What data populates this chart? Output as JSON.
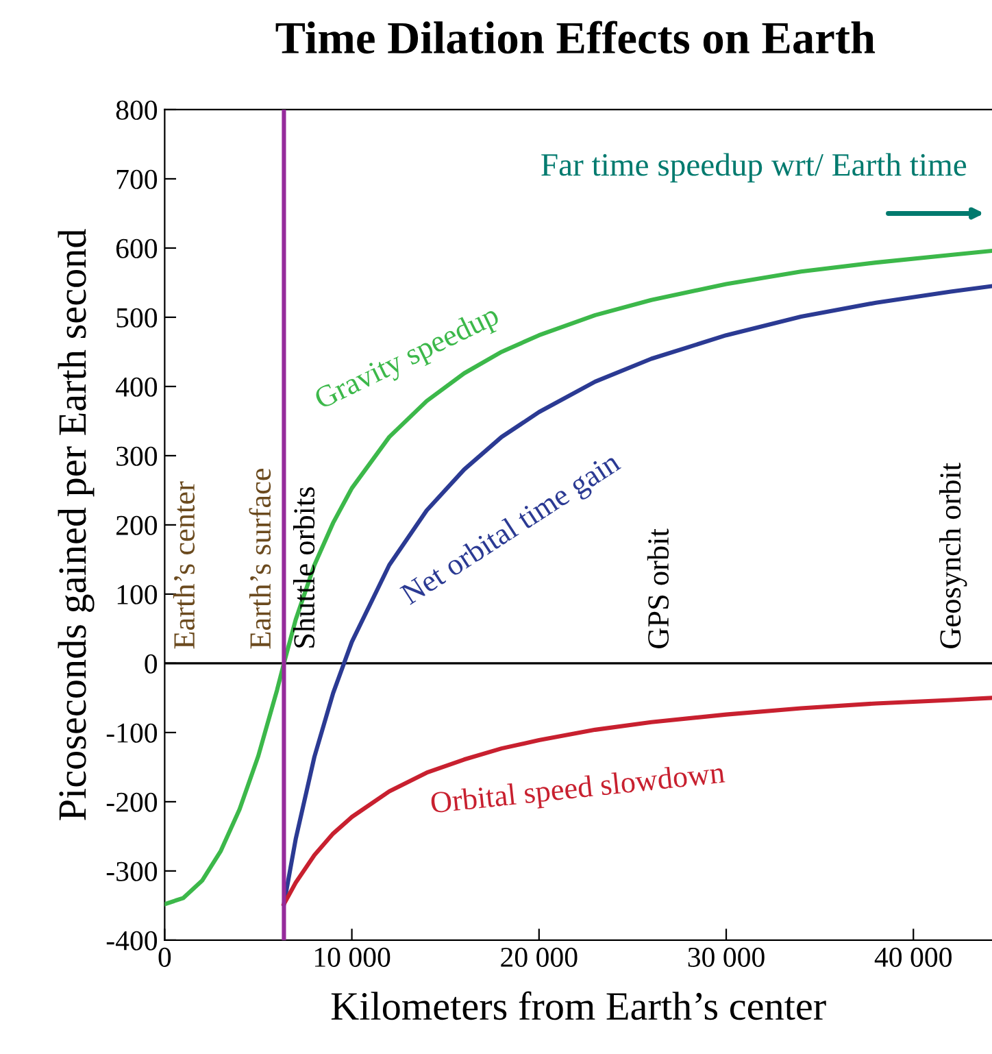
{
  "chart_data": {
    "type": "line",
    "title": "Time Dilation Effects on Earth",
    "xlabel": "Kilometers from Earth’s center",
    "ylabel": "Picoseconds gained per Earth second",
    "xlim": [
      0,
      44200
    ],
    "ylim": [
      -400,
      800
    ],
    "xticks": [
      0,
      {
        "value": 10000,
        "label": "10 000"
      },
      {
        "value": 20000,
        "label": "20 000"
      },
      {
        "value": 30000,
        "label": "30 000"
      },
      {
        "value": 40000,
        "label": "40 000"
      }
    ],
    "yticks": [
      -400,
      -300,
      -200,
      -100,
      0,
      100,
      200,
      300,
      400,
      500,
      600,
      700,
      800
    ],
    "grid": false,
    "legend": false,
    "marker": "none",
    "line_style": "solid",
    "series": [
      {
        "name": "Gravity speedup",
        "color": "#3cb84a",
        "x": [
          0,
          1000,
          2000,
          3000,
          4000,
          5000,
          6000,
          6371,
          7000,
          8000,
          9000,
          10000,
          12000,
          14000,
          16000,
          18000,
          20000,
          23000,
          26000,
          30000,
          34000,
          38000,
          42000,
          44200
        ],
        "values": [
          -348,
          -339,
          -314,
          -271,
          -211,
          -134,
          -39,
          0,
          63,
          142,
          203,
          253,
          327,
          379,
          419,
          450,
          474,
          503,
          525,
          548,
          566,
          579,
          590,
          596
        ]
      },
      {
        "name": "Net orbital time gain",
        "color": "#2b3a93",
        "x": [
          6371,
          7000,
          8000,
          9000,
          10000,
          12000,
          14000,
          16000,
          18000,
          20000,
          23000,
          26000,
          30000,
          34000,
          38000,
          42000,
          44200
        ],
        "values": [
          -348,
          -254,
          -135,
          -43,
          31,
          142,
          221,
          280,
          327,
          363,
          407,
          440,
          474,
          501,
          521,
          537,
          545
        ]
      },
      {
        "name": "Orbital speed slowdown",
        "color": "#c8202f",
        "x": [
          6371,
          7000,
          8000,
          9000,
          10000,
          12000,
          14000,
          16000,
          18000,
          20000,
          23000,
          26000,
          30000,
          34000,
          38000,
          42000,
          44200
        ],
        "values": [
          -348,
          -317,
          -277,
          -246,
          -222,
          -185,
          -158,
          -139,
          -123,
          -111,
          -96,
          -85,
          -74,
          -65,
          -58,
          -53,
          -50
        ]
      }
    ],
    "ref_lines": [
      {
        "axis": "x",
        "value": 6371,
        "color": "#952b9b"
      },
      {
        "axis": "y",
        "value": 0,
        "color": "#000000"
      }
    ],
    "annotations": [
      "Earth’s center",
      "Earth’s surface",
      "Shuttle orbits",
      "GPS orbit",
      "Geosynch orbit",
      "Far time speedup wrt/ Earth time"
    ]
  }
}
